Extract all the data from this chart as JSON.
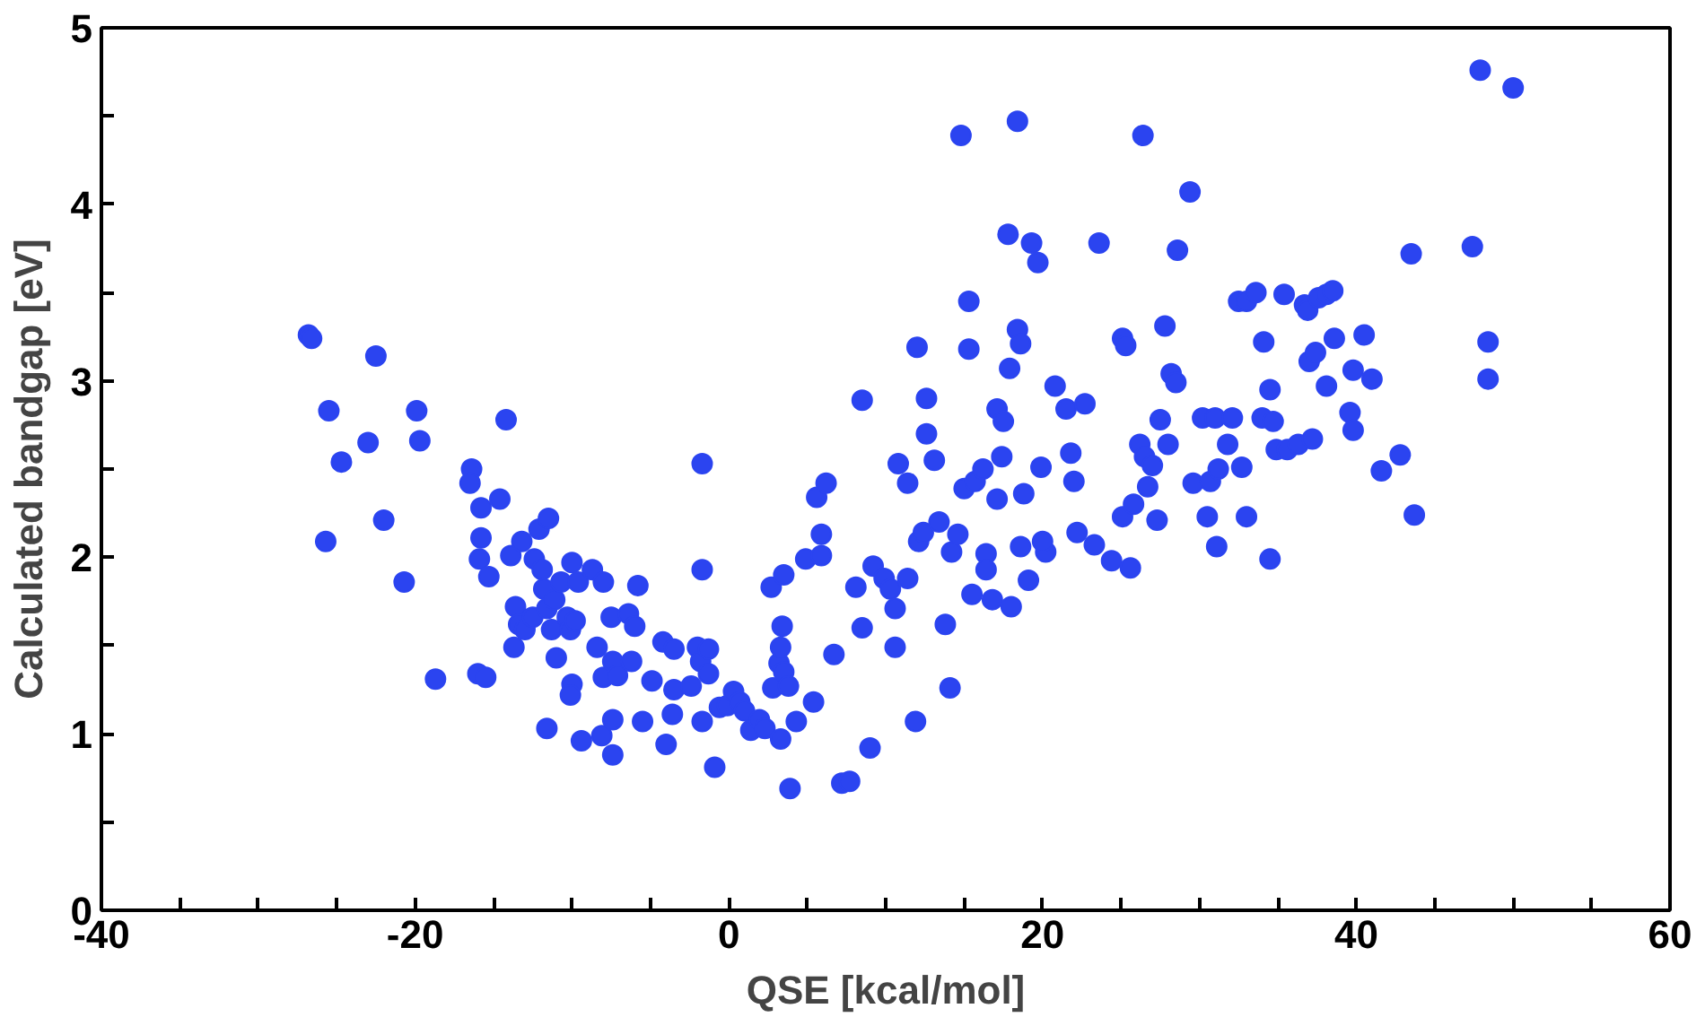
{
  "chart_data": {
    "type": "scatter",
    "xlabel": "QSE [kcal/mol]",
    "ylabel": "Calculated bandgap [eV]",
    "xlim": [
      -40,
      60
    ],
    "ylim": [
      0,
      5
    ],
    "xticks": [
      -40,
      {
        "value": -35,
        "label": null
      },
      -20,
      {
        "value": -30,
        "label": null
      },
      {
        "value": -25,
        "label": null
      },
      {
        "value": -15,
        "label": null
      },
      {
        "value": -10,
        "label": null
      },
      {
        "value": -5,
        "label": null
      },
      0,
      {
        "value": 5,
        "label": null
      },
      {
        "value": 10,
        "label": null
      },
      {
        "value": 15,
        "label": null
      },
      20,
      {
        "value": 25,
        "label": null
      },
      {
        "value": 30,
        "label": null
      },
      {
        "value": 35,
        "label": null
      },
      40,
      {
        "value": 45,
        "label": null
      },
      {
        "value": 50,
        "label": null
      },
      {
        "value": 55,
        "label": null
      },
      60
    ],
    "yticks": [
      0,
      {
        "value": 0.5,
        "label": null
      },
      1,
      {
        "value": 1.5,
        "label": null
      },
      2,
      {
        "value": 2.5,
        "label": null
      },
      3,
      {
        "value": 3.5,
        "label": null
      },
      4,
      {
        "value": 4.5,
        "label": null
      },
      5
    ],
    "grid": false,
    "marker": "circle",
    "series": [
      {
        "color": "#2b44f0",
        "x": [
          -26.8,
          -26.6,
          -25.5,
          -25.7,
          -24.7,
          -23.0,
          -22.5,
          -22.0,
          -20.7,
          -19.9,
          -19.7,
          -18.7,
          -16.4,
          -16.5,
          -15.8,
          -15.8,
          -15.9,
          -15.3,
          -16.0,
          -15.5,
          -14.6,
          -14.2,
          -13.9,
          -13.6,
          -13.2,
          -13.7,
          -13.4,
          -13.0,
          -12.5,
          -12.4,
          -11.9,
          -12.1,
          -11.5,
          -11.8,
          -11.6,
          -11.3,
          -11.1,
          -11.0,
          -11.6,
          -10.3,
          -10.0,
          -10.1,
          -9.8,
          -10.7,
          -9.6,
          -10.0,
          -10.1,
          -9.4,
          -8.7,
          -8.4,
          -8.0,
          -8.0,
          -8.1,
          -7.5,
          -7.4,
          -7.4,
          -7.4,
          -7.1,
          -6.4,
          -6.0,
          -5.8,
          -6.2,
          -5.5,
          -4.9,
          -4.2,
          -4.0,
          -3.6,
          -3.5,
          -3.5,
          -2.4,
          -2.0,
          -1.8,
          -1.7,
          -1.7,
          -1.3,
          -1.7,
          -1.3,
          -0.9,
          -0.6,
          -0.1,
          0.3,
          0.7,
          1.0,
          1.4,
          1.95,
          2.3,
          2.8,
          3.2,
          3.4,
          3.3,
          3.5,
          3.8,
          2.7,
          3.5,
          3.3,
          4.3,
          3.9,
          5.4,
          4.9,
          5.6,
          5.9,
          5.9,
          6.2,
          6.7,
          7.2,
          7.7,
          8.1,
          8.5,
          8.5,
          9.0,
          9.2,
          9.9,
          10.3,
          10.6,
          10.6,
          10.8,
          11.4,
          11.4,
          12.0,
          12.1,
          11.9,
          12.6,
          12.6,
          12.4,
          13.1,
          13.4,
          13.8,
          14.1,
          14.2,
          14.6,
          14.8,
          15.0,
          15.3,
          15.3,
          15.5,
          15.7,
          16.2,
          16.4,
          16.4,
          16.8,
          17.1,
          17.1,
          17.4,
          17.5,
          17.8,
          17.9,
          18.0,
          18.4,
          18.4,
          18.6,
          18.6,
          18.8,
          19.1,
          19.3,
          19.7,
          19.9,
          20.2,
          20.0,
          20.8,
          21.5,
          21.8,
          22.0,
          22.2,
          22.7,
          23.6,
          23.3,
          24.4,
          25.1,
          25.3,
          25.1,
          25.6,
          25.8,
          26.2,
          26.4,
          26.5,
          26.7,
          27.0,
          27.3,
          27.5,
          27.8,
          28.0,
          28.2,
          28.5,
          28.6,
          29.4,
          29.6,
          30.2,
          30.5,
          30.7,
          31.0,
          31.1,
          31.2,
          31.8,
          32.1,
          32.5,
          32.7,
          33.0,
          33.0,
          33.6,
          34.1,
          34.5,
          34.0,
          34.5,
          34.7,
          34.9,
          35.4,
          35.6,
          36.3,
          36.7,
          36.9,
          37.0,
          37.4,
          37.2,
          37.6,
          38.1,
          38.5,
          38.1,
          38.6,
          39.6,
          39.8,
          39.8,
          40.5,
          41.0,
          41.6,
          42.8,
          43.5,
          43.7,
          47.4,
          47.9,
          48.4,
          48.4,
          50.0
        ],
        "values": [
          3.26,
          3.24,
          2.83,
          2.09,
          2.54,
          2.65,
          3.14,
          2.21,
          1.86,
          2.83,
          2.66,
          1.31,
          2.5,
          2.42,
          2.28,
          2.11,
          1.99,
          1.89,
          1.34,
          1.32,
          2.33,
          2.78,
          2.01,
          1.72,
          2.09,
          1.49,
          1.62,
          1.59,
          1.66,
          1.99,
          1.93,
          2.16,
          2.22,
          1.82,
          1.71,
          1.59,
          1.76,
          1.43,
          1.03,
          1.66,
          1.97,
          1.59,
          1.64,
          1.86,
          1.86,
          1.28,
          1.22,
          0.96,
          1.93,
          1.49,
          1.86,
          1.32,
          0.99,
          1.66,
          1.41,
          1.08,
          0.88,
          1.33,
          1.68,
          1.61,
          1.84,
          1.41,
          1.07,
          1.3,
          1.52,
          0.94,
          1.11,
          1.48,
          1.25,
          1.27,
          1.49,
          1.41,
          1.93,
          2.53,
          1.34,
          1.07,
          1.48,
          0.81,
          1.15,
          1.16,
          1.24,
          1.18,
          1.13,
          1.02,
          1.08,
          1.03,
          1.26,
          1.4,
          1.61,
          1.49,
          1.35,
          1.27,
          1.83,
          1.9,
          0.97,
          1.07,
          0.69,
          1.18,
          1.99,
          2.34,
          2.13,
          2.01,
          2.42,
          1.45,
          0.72,
          0.73,
          1.83,
          1.6,
          2.89,
          0.92,
          1.95,
          1.88,
          1.82,
          1.71,
          1.49,
          2.53,
          1.88,
          2.42,
          3.19,
          2.09,
          1.07,
          2.9,
          2.7,
          2.14,
          2.55,
          2.2,
          1.62,
          1.26,
          2.03,
          2.13,
          4.39,
          2.39,
          3.45,
          3.18,
          1.79,
          2.43,
          2.5,
          2.02,
          1.93,
          1.76,
          2.84,
          2.33,
          2.57,
          2.77,
          3.83,
          3.07,
          1.72,
          4.47,
          3.29,
          3.21,
          2.06,
          2.36,
          1.87,
          3.78,
          3.67,
          2.51,
          2.03,
          2.09,
          2.97,
          2.84,
          2.59,
          2.43,
          2.14,
          2.87,
          3.78,
          2.07,
          1.98,
          3.24,
          3.2,
          2.23,
          1.94,
          2.3,
          2.64,
          4.39,
          2.57,
          2.4,
          2.52,
          2.21,
          2.78,
          3.31,
          2.64,
          3.04,
          2.99,
          3.74,
          4.07,
          2.42,
          2.79,
          2.23,
          2.43,
          2.79,
          2.06,
          2.5,
          2.64,
          2.79,
          3.45,
          2.51,
          3.45,
          2.23,
          3.5,
          3.22,
          2.95,
          2.79,
          1.99,
          2.77,
          2.61,
          3.49,
          2.61,
          2.64,
          3.43,
          3.4,
          3.11,
          3.16,
          2.67,
          3.47,
          3.49,
          3.51,
          2.97,
          3.24,
          2.82,
          2.72,
          3.06,
          3.26,
          3.01,
          2.49,
          2.58,
          3.72,
          2.24,
          3.76,
          4.76,
          3.22,
          3.01,
          4.66
        ]
      }
    ]
  }
}
